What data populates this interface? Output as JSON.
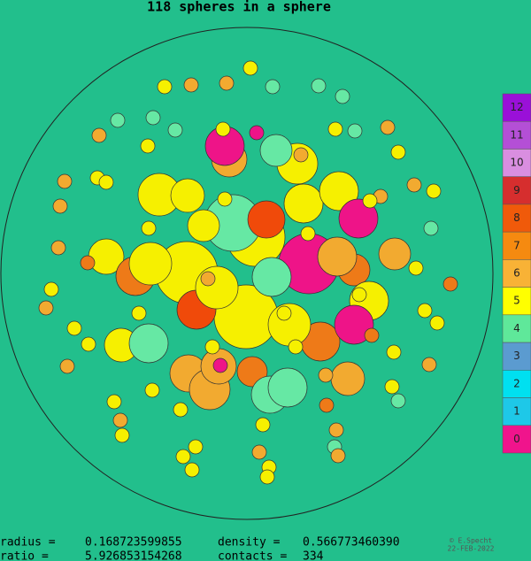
{
  "header": {
    "title": "118 spheres in a sphere"
  },
  "legend": {
    "labels": [
      12,
      11,
      10,
      9,
      8,
      7,
      6,
      5,
      4,
      3,
      2,
      1,
      0
    ]
  },
  "stats": {
    "radius_label": "radius =",
    "radius_value": "0.168723599855",
    "density_label": "density  =",
    "density_value": "0.566773460390",
    "ratio_label": "ratio  =",
    "ratio_value": "5.926853154268",
    "contacts_label": "contacts =",
    "contacts_value": "334"
  },
  "credit": {
    "author": "© E.Specht",
    "date": "22-FEB-2022"
  }
}
